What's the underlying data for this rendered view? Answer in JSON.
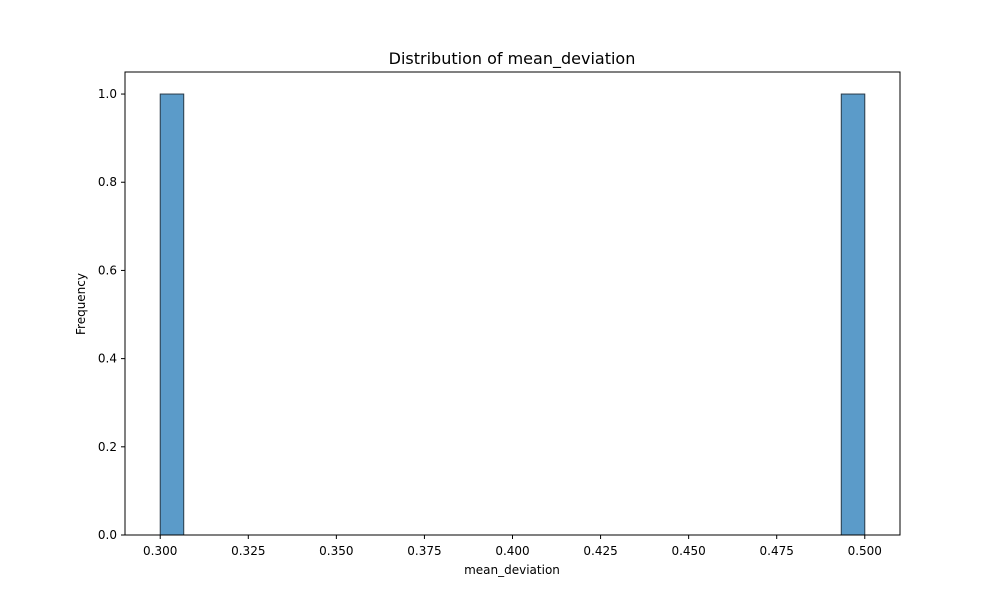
{
  "chart_data": {
    "type": "bar",
    "title": "Distribution of mean_deviation",
    "xlabel": "mean_deviation",
    "ylabel": "Frequency",
    "xlim": [
      0.29,
      0.51
    ],
    "ylim": [
      0,
      1.05
    ],
    "xticks": [
      0.3,
      0.325,
      0.35,
      0.375,
      0.4,
      0.425,
      0.45,
      0.475,
      0.5
    ],
    "xtick_labels": [
      "0.300",
      "0.325",
      "0.350",
      "0.375",
      "0.400",
      "0.425",
      "0.450",
      "0.475",
      "0.500"
    ],
    "yticks": [
      0.0,
      0.2,
      0.4,
      0.6,
      0.8,
      1.0
    ],
    "ytick_labels": [
      "0.0",
      "0.2",
      "0.4",
      "0.6",
      "0.8",
      "1.0"
    ],
    "bins": [
      {
        "x0": 0.3,
        "x1": 0.30667,
        "count": 1
      },
      {
        "x0": 0.49333,
        "x1": 0.5,
        "count": 1
      }
    ],
    "grid": false,
    "bar_color": "#5b9bc9",
    "bar_edge_color": "#2a3a48"
  }
}
